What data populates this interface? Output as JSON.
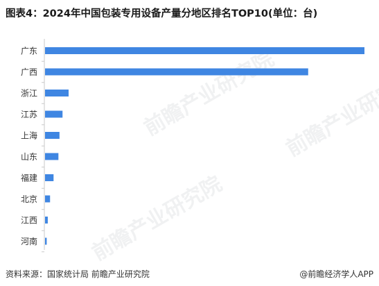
{
  "title": "图表4：2024年中国包装专用设备产量分地区排名TOP10(单位：台)",
  "source": "资料来源：国家统计局 前瞻产业研究院",
  "brand": "@前瞻经济学人APP",
  "watermark": "前瞻产业研究院",
  "colors": {
    "bar": "#3f86e2",
    "axis": "#c8c8c8",
    "text": "#333333"
  },
  "chart_data": {
    "type": "bar",
    "orientation": "horizontal",
    "title": "图表4：2024年中国包装专用设备产量分地区排名TOP10(单位：台)",
    "categories": [
      "广东",
      "广西",
      "浙江",
      "江苏",
      "上海",
      "山东",
      "福建",
      "北京",
      "江西",
      "河南"
    ],
    "values": [
      210000,
      173000,
      15500,
      11500,
      9500,
      8800,
      5600,
      3300,
      1800,
      1100
    ],
    "xlabel": "",
    "ylabel": "",
    "xlim": [
      0,
      210000
    ],
    "grid": false,
    "legend": "none"
  }
}
